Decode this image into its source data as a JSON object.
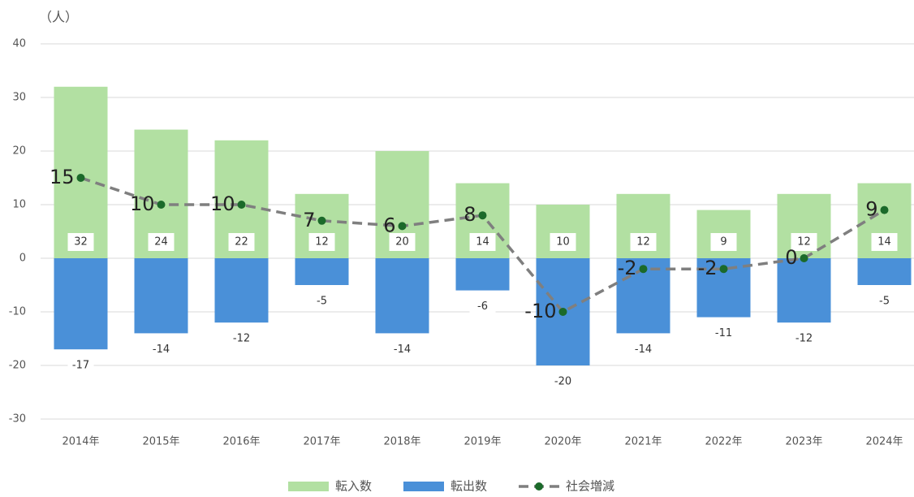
{
  "chart_data": {
    "type": "bar-line",
    "y_label": "（人）",
    "categories": [
      "2014年",
      "2015年",
      "2016年",
      "2017年",
      "2018年",
      "2019年",
      "2020年",
      "2021年",
      "2022年",
      "2023年",
      "2024年"
    ],
    "series": [
      {
        "name": "転入数",
        "type": "bar",
        "color": "#b2e0a2",
        "values": [
          32,
          24,
          22,
          12,
          20,
          14,
          10,
          12,
          9,
          12,
          14
        ]
      },
      {
        "name": "転出数",
        "type": "bar",
        "color": "#4a90d8",
        "values": [
          -17,
          -14,
          -12,
          -5,
          -14,
          -6,
          -20,
          -14,
          -11,
          -12,
          -5
        ]
      },
      {
        "name": "社会増減",
        "type": "line",
        "color": "#7f7f7f",
        "marker_color": "#1b6a2a",
        "values": [
          15,
          10,
          10,
          7,
          6,
          8,
          -10,
          -2,
          -2,
          0,
          9
        ]
      }
    ],
    "ylim": [
      -30,
      40
    ],
    "yticks": [
      -30,
      -20,
      -10,
      0,
      10,
      20,
      30,
      40
    ],
    "grid": true,
    "legend": "bottom"
  }
}
